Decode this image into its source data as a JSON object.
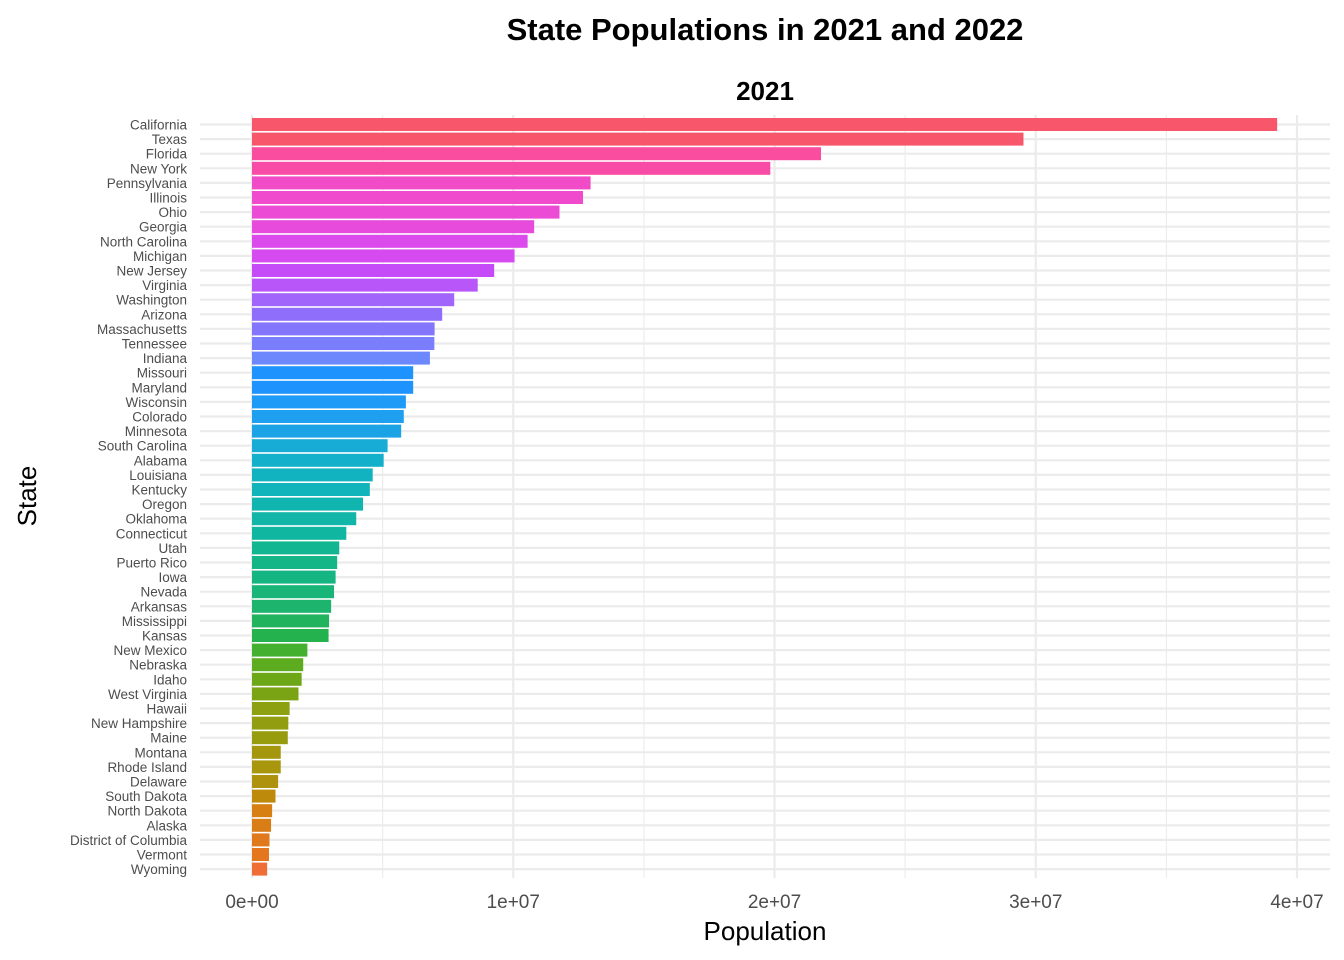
{
  "chart_data": {
    "type": "bar",
    "orientation": "horizontal",
    "title": "State Populations in 2021 and 2022",
    "facet_label": "2021",
    "xlabel": "Population",
    "ylabel": "State",
    "xlim": [
      0,
      40000000
    ],
    "x_ticks": [
      {
        "value": 0,
        "label": "0e+00"
      },
      {
        "value": 10000000,
        "label": "1e+07"
      },
      {
        "value": 20000000,
        "label": "2e+07"
      },
      {
        "value": 30000000,
        "label": "3e+07"
      },
      {
        "value": 40000000,
        "label": "4e+07"
      }
    ],
    "grid": true,
    "legend": "none",
    "categories": [
      "California",
      "Texas",
      "Florida",
      "New York",
      "Pennsylvania",
      "Illinois",
      "Ohio",
      "Georgia",
      "North Carolina",
      "Michigan",
      "New Jersey",
      "Virginia",
      "Washington",
      "Arizona",
      "Massachusetts",
      "Tennessee",
      "Indiana",
      "Missouri",
      "Maryland",
      "Wisconsin",
      "Colorado",
      "Minnesota",
      "South Carolina",
      "Alabama",
      "Louisiana",
      "Kentucky",
      "Oregon",
      "Oklahoma",
      "Connecticut",
      "Utah",
      "Puerto Rico",
      "Iowa",
      "Nevada",
      "Arkansas",
      "Mississippi",
      "Kansas",
      "New Mexico",
      "Nebraska",
      "Idaho",
      "West Virginia",
      "Hawaii",
      "New Hampshire",
      "Maine",
      "Montana",
      "Rhode Island",
      "Delaware",
      "South Dakota",
      "North Dakota",
      "Alaska",
      "District of Columbia",
      "Vermont",
      "Wyoming"
    ],
    "values": [
      39240000,
      29530000,
      21780000,
      19840000,
      12960000,
      12670000,
      11770000,
      10800000,
      10550000,
      10050000,
      9270000,
      8640000,
      7740000,
      7280000,
      6990000,
      6980000,
      6810000,
      6170000,
      6170000,
      5890000,
      5810000,
      5710000,
      5190000,
      5040000,
      4620000,
      4510000,
      4250000,
      3990000,
      3610000,
      3340000,
      3260000,
      3200000,
      3140000,
      3030000,
      2950000,
      2930000,
      2120000,
      1960000,
      1900000,
      1780000,
      1440000,
      1390000,
      1370000,
      1100000,
      1100000,
      1000000,
      900000,
      770000,
      730000,
      670000,
      650000,
      580000
    ],
    "bar_colors": [
      "#F8566B",
      "#F8566B",
      "#FA4DA0",
      "#F84BA6",
      "#F14BC8",
      "#F04BCC",
      "#EB4BD5",
      "#E74BDC",
      "#DB4BEB",
      "#D64BEF",
      "#C54BF8",
      "#B856FA",
      "#A265FB",
      "#906EFC",
      "#8476FC",
      "#7A7DFC",
      "#6C88FC",
      "#1F93FD",
      "#1F93FD",
      "#1E9AF7",
      "#1E9FEF",
      "#1BA3E6",
      "#17ACD6",
      "#13B0CB",
      "#12B3C0",
      "#12B4BB",
      "#11B5B0",
      "#11B6A8",
      "#11B6A0",
      "#12B690",
      "#14B587",
      "#15B582",
      "#19B478",
      "#1DB46E",
      "#22B35E",
      "#24B24F",
      "#43B030",
      "#5DAB1E",
      "#6DA717",
      "#7BA414",
      "#8DA010",
      "#929E0F",
      "#979C0F",
      "#A4970D",
      "#A8960D",
      "#AE920D",
      "#BE8A0C",
      "#D77F12",
      "#D97D16",
      "#E0791C",
      "#E4761E",
      "#EF6E35"
    ]
  }
}
